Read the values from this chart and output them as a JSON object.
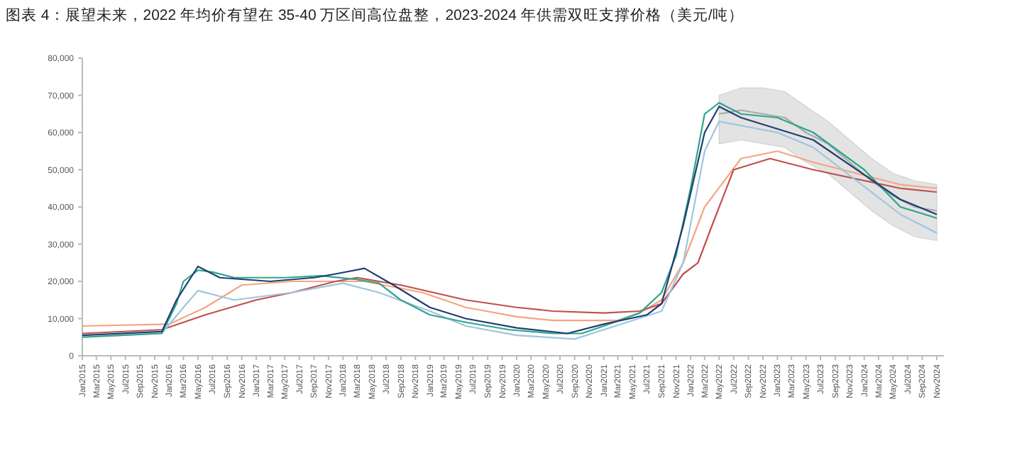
{
  "chart_data": {
    "type": "line",
    "title": "图表 4：展望未来，2022 年均价有望在 35-40 万区间高位盘整，2023-2024 年供需双旺支撑价格（美元/吨）",
    "xlim": [
      "2015-01",
      "2024-12"
    ],
    "ylim": [
      0,
      80000
    ],
    "yticks": [
      0,
      {
        "value": 10000,
        "label": "10,000"
      },
      {
        "value": 20000,
        "label": "20,000"
      },
      {
        "value": 30000,
        "label": "30,000"
      },
      {
        "value": 40000,
        "label": "40,000"
      },
      {
        "value": 50000,
        "label": "50,000"
      },
      {
        "value": 60000,
        "label": "60,000"
      },
      {
        "value": 70000,
        "label": "70,000"
      },
      {
        "value": 80000,
        "label": "80,000"
      }
    ],
    "xticks": [
      {
        "value": "2015-01",
        "label": "Jan2015"
      },
      {
        "value": "2015-03",
        "label": "Mar2015"
      },
      {
        "value": "2015-05",
        "label": "May2015"
      },
      {
        "value": "2015-07",
        "label": "Jul2015"
      },
      {
        "value": "2015-09",
        "label": "Sep2015"
      },
      {
        "value": "2015-11",
        "label": "Nov2015"
      },
      {
        "value": "2016-01",
        "label": "Jan2016"
      },
      {
        "value": "2016-03",
        "label": "Mar2016"
      },
      {
        "value": "2016-05",
        "label": "May2016"
      },
      {
        "value": "2016-07",
        "label": "Jul2016"
      },
      {
        "value": "2016-09",
        "label": "Sep2016"
      },
      {
        "value": "2016-11",
        "label": "Nov2016"
      },
      {
        "value": "2017-01",
        "label": "Jan2017"
      },
      {
        "value": "2017-03",
        "label": "Mar2017"
      },
      {
        "value": "2017-05",
        "label": "May2017"
      },
      {
        "value": "2017-07",
        "label": "Jul2017"
      },
      {
        "value": "2017-09",
        "label": "Sep2017"
      },
      {
        "value": "2017-11",
        "label": "Nov2017"
      },
      {
        "value": "2018-01",
        "label": "Jan2018"
      },
      {
        "value": "2018-03",
        "label": "Mar2018"
      },
      {
        "value": "2018-05",
        "label": "May2018"
      },
      {
        "value": "2018-07",
        "label": "Jul2018"
      },
      {
        "value": "2018-09",
        "label": "Sep2018"
      },
      {
        "value": "2018-11",
        "label": "Nov2018"
      },
      {
        "value": "2019-01",
        "label": "Jan2019"
      },
      {
        "value": "2019-03",
        "label": "Mar2019"
      },
      {
        "value": "2019-05",
        "label": "May2019"
      },
      {
        "value": "2019-07",
        "label": "Jul2019"
      },
      {
        "value": "2019-09",
        "label": "Sep2019"
      },
      {
        "value": "2019-11",
        "label": "Nov2019"
      },
      {
        "value": "2020-01",
        "label": "Jan2020"
      },
      {
        "value": "2020-03",
        "label": "Mar2020"
      },
      {
        "value": "2020-05",
        "label": "May2020"
      },
      {
        "value": "2020-07",
        "label": "Jul2020"
      },
      {
        "value": "2020-09",
        "label": "Sep2020"
      },
      {
        "value": "2020-11",
        "label": "Nov2020"
      },
      {
        "value": "2021-01",
        "label": "Jan2021"
      },
      {
        "value": "2021-03",
        "label": "Mar2021"
      },
      {
        "value": "2021-05",
        "label": "May2021"
      },
      {
        "value": "2021-07",
        "label": "Jul2021"
      },
      {
        "value": "2021-09",
        "label": "Sep2021"
      },
      {
        "value": "2021-11",
        "label": "Nov2021"
      },
      {
        "value": "2022-01",
        "label": "Jan2022"
      },
      {
        "value": "2022-03",
        "label": "Mar2022"
      },
      {
        "value": "2022-05",
        "label": "May2022"
      },
      {
        "value": "2022-07",
        "label": "Jul2022"
      },
      {
        "value": "2022-09",
        "label": "Sep2022"
      },
      {
        "value": "2022-11",
        "label": "Nov2022"
      },
      {
        "value": "2023-01",
        "label": "Jan2023"
      },
      {
        "value": "2023-03",
        "label": "Mar2023"
      },
      {
        "value": "2023-05",
        "label": "May2023"
      },
      {
        "value": "2023-07",
        "label": "Jul2023"
      },
      {
        "value": "2023-09",
        "label": "Sep2023"
      },
      {
        "value": "2023-11",
        "label": "Nov2023"
      },
      {
        "value": "2024-01",
        "label": "Jan2024"
      },
      {
        "value": "2024-03",
        "label": "Mar2024"
      },
      {
        "value": "2024-05",
        "label": "May2024"
      },
      {
        "value": "2024-07",
        "label": "Jul2024"
      },
      {
        "value": "2024-09",
        "label": "Sep2024"
      },
      {
        "value": "2024-11",
        "label": "Nov2024"
      }
    ],
    "series": [
      {
        "color": "#aaaaaa",
        "x": [
          "2022-05",
          "2022-08",
          "2022-11",
          "2023-02",
          "2023-05",
          "2023-08",
          "2023-11",
          "2024-02",
          "2024-05",
          "2024-08",
          "2024-11"
        ],
        "values": [
          65000,
          66000,
          65000,
          64000,
          60000,
          57000,
          52000,
          47000,
          43000,
          40000,
          39000
        ],
        "lower": [
          57000,
          58000,
          57000,
          56000,
          52000,
          49000,
          44000,
          39000,
          35000,
          32000,
          31000
        ],
        "upper": [
          70000,
          72000,
          72000,
          71000,
          67000,
          63000,
          58000,
          53000,
          49000,
          47000,
          46000
        ]
      },
      {
        "color": "#f4a582",
        "x": [
          "2015-01",
          "2016-01",
          "2016-06",
          "2016-11",
          "2017-06",
          "2018-04",
          "2018-12",
          "2019-06",
          "2020-01",
          "2020-06",
          "2021-03",
          "2021-06",
          "2021-09",
          "2021-12",
          "2022-03",
          "2022-08",
          "2023-01",
          "2023-06",
          "2024-06",
          "2024-11"
        ],
        "values": [
          8000,
          8500,
          13000,
          19000,
          20000,
          20000,
          17000,
          13000,
          10500,
          9500,
          9500,
          11500,
          15000,
          25000,
          40000,
          53000,
          55000,
          52000,
          46000,
          45000
        ]
      },
      {
        "color": "#c0504d",
        "x": [
          "2015-01",
          "2015-12",
          "2016-06",
          "2017-01",
          "2017-06",
          "2017-12",
          "2018-03",
          "2018-09",
          "2019-06",
          "2020-01",
          "2020-06",
          "2021-01",
          "2021-06",
          "2021-09",
          "2021-12",
          "2022-02",
          "2022-04",
          "2022-07",
          "2022-12",
          "2023-06",
          "2024-06",
          "2024-11"
        ],
        "values": [
          6000,
          7000,
          11000,
          15000,
          17000,
          20000,
          21000,
          19000,
          15000,
          13000,
          12000,
          11500,
          12000,
          14000,
          22000,
          25000,
          35000,
          50000,
          53000,
          50000,
          45000,
          44000
        ]
      },
      {
        "color": "#9ec5e0",
        "x": [
          "2015-01",
          "2015-12",
          "2016-03",
          "2016-05",
          "2016-10",
          "2017-06",
          "2018-01",
          "2018-06",
          "2019-01",
          "2019-06",
          "2020-01",
          "2020-09",
          "2021-01",
          "2021-09",
          "2021-12",
          "2022-03",
          "2022-05",
          "2023-01",
          "2023-06",
          "2024-06",
          "2024-11"
        ],
        "values": [
          5000,
          6000,
          13000,
          17500,
          15000,
          17000,
          19500,
          17000,
          12000,
          8000,
          5500,
          4500,
          7000,
          12000,
          25000,
          55000,
          63000,
          60000,
          56000,
          38000,
          33000
        ]
      },
      {
        "color": "#2fa58c",
        "x": [
          "2015-01",
          "2015-12",
          "2016-02",
          "2016-03",
          "2016-05",
          "2016-07",
          "2016-10",
          "2017-05",
          "2017-10",
          "2018-03",
          "2018-06",
          "2018-09",
          "2019-01",
          "2019-06",
          "2019-12",
          "2020-06",
          "2020-10",
          "2021-01",
          "2021-06",
          "2021-09",
          "2021-11",
          "2022-01",
          "2022-03",
          "2022-05",
          "2022-08",
          "2023-01",
          "2023-06",
          "2024-01",
          "2024-06",
          "2024-11"
        ],
        "values": [
          5000,
          6000,
          14000,
          20000,
          23000,
          22500,
          21000,
          21000,
          21500,
          20500,
          19500,
          15000,
          11000,
          9000,
          7000,
          6000,
          6000,
          8000,
          11500,
          17000,
          27000,
          45000,
          65000,
          68000,
          65000,
          64000,
          60000,
          50000,
          40000,
          37000
        ]
      },
      {
        "color": "#1f3f73",
        "x": [
          "2015-01",
          "2015-12",
          "2016-02",
          "2016-05",
          "2016-08",
          "2017-03",
          "2017-09",
          "2017-12",
          "2018-04",
          "2018-08",
          "2019-01",
          "2019-06",
          "2020-01",
          "2020-08",
          "2021-01",
          "2021-07",
          "2021-09",
          "2021-12",
          "2022-03",
          "2022-05",
          "2022-08",
          "2023-06",
          "2024-06",
          "2024-11"
        ],
        "values": [
          5500,
          6500,
          15000,
          24000,
          21000,
          20000,
          21000,
          22000,
          23500,
          19000,
          13000,
          10000,
          7500,
          6000,
          8500,
          11000,
          14000,
          35000,
          60000,
          67000,
          64000,
          58000,
          42000,
          38000
        ]
      }
    ]
  }
}
